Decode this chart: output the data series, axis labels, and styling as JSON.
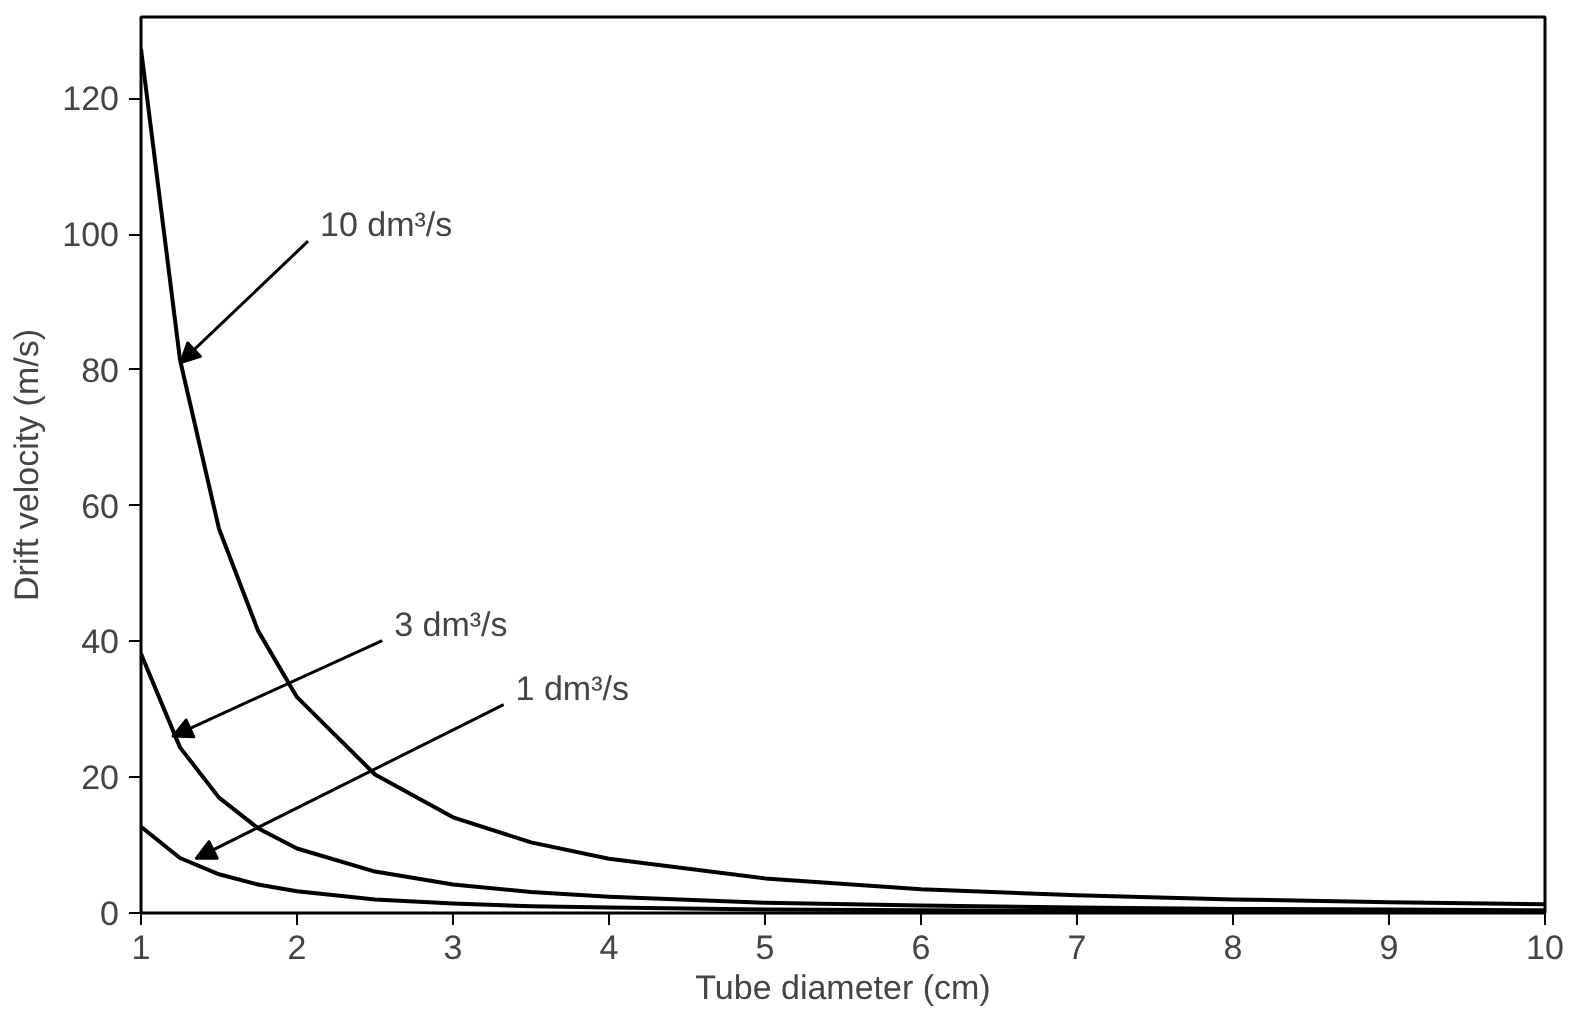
{
  "chart_data": {
    "type": "line",
    "xlabel": "Tube diameter (cm)",
    "ylabel": "Drift velocity (m/s)",
    "x": [
      1,
      1.25,
      1.5,
      1.75,
      2,
      2.5,
      3,
      3.5,
      4,
      5,
      6,
      7,
      8,
      9,
      10
    ],
    "series": [
      {
        "color": "#000000",
        "values": [
          127.3,
          81.5,
          56.6,
          41.6,
          31.8,
          20.4,
          14.1,
          10.4,
          8.0,
          5.1,
          3.5,
          2.6,
          2.0,
          1.6,
          1.3
        ]
      },
      {
        "color": "#000000",
        "values": [
          38.2,
          24.4,
          17.0,
          12.5,
          9.5,
          6.1,
          4.2,
          3.1,
          2.4,
          1.5,
          1.1,
          0.8,
          0.6,
          0.5,
          0.4
        ]
      },
      {
        "color": "#000000",
        "values": [
          12.7,
          8.1,
          5.7,
          4.2,
          3.2,
          2.0,
          1.4,
          1.0,
          0.8,
          0.5,
          0.4,
          0.3,
          0.2,
          0.2,
          0.1
        ]
      }
    ],
    "xlim": [
      1,
      10
    ],
    "xticks": [
      1,
      2,
      3,
      4,
      5,
      6,
      7,
      8,
      9,
      10
    ],
    "ylim": [
      0,
      132
    ],
    "yticks": [
      0,
      20,
      40,
      60,
      80,
      100,
      120
    ],
    "grid": false,
    "marker": "none",
    "line_style": "solid",
    "annotations": [
      {
        "text": "10 dm³/s",
        "x": 1.25,
        "y": 81
      },
      {
        "text": "3 dm³/s",
        "x": 1.2,
        "y": 26
      },
      {
        "text": "1 dm³/s",
        "x": 1.35,
        "y": 8
      }
    ]
  }
}
